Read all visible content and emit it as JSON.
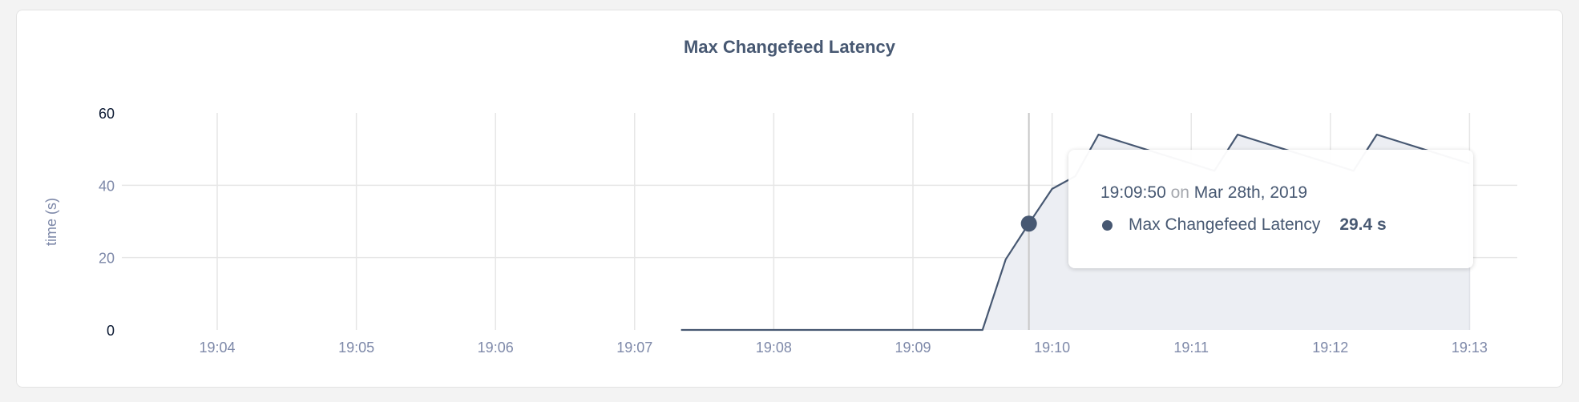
{
  "chart_data": {
    "type": "area",
    "title": "Max Changefeed Latency",
    "xlabel": "",
    "ylabel": "time (s)",
    "ylim": [
      0,
      60
    ],
    "yticks": [
      "0",
      "20",
      "40",
      "60"
    ],
    "xticks": [
      "19:04",
      "19:05",
      "19:06",
      "19:07",
      "19:08",
      "19:09",
      "19:10",
      "19:11",
      "19:12",
      "19:13"
    ],
    "grid": true,
    "series": [
      {
        "name": "Max Changefeed Latency",
        "color": "#475872",
        "fill": "#eceef3",
        "x": [
          "19:07:20",
          "19:09:30",
          "19:09:40",
          "19:09:50",
          "19:10:00",
          "19:10:10",
          "19:10:20",
          "19:10:30",
          "19:10:40",
          "19:10:50",
          "19:11:00",
          "19:11:10",
          "19:11:20",
          "19:11:30",
          "19:11:40",
          "19:11:50",
          "19:12:00",
          "19:12:10",
          "19:12:20",
          "19:12:30",
          "19:12:40",
          "19:12:50",
          "19:13:00"
        ],
        "y": [
          0,
          0,
          19.5,
          29.4,
          39,
          42.5,
          54,
          52,
          50,
          48,
          46,
          44,
          54,
          52,
          50,
          48,
          46,
          44,
          54,
          52,
          50,
          48,
          46
        ]
      }
    ],
    "hover": {
      "x": "19:09:50",
      "y": 29.4
    }
  },
  "tooltip": {
    "time": "19:09:50",
    "on": "on",
    "date": "Mar 28th, 2019",
    "series_name": "Max Changefeed Latency",
    "value": "29.4 s"
  }
}
